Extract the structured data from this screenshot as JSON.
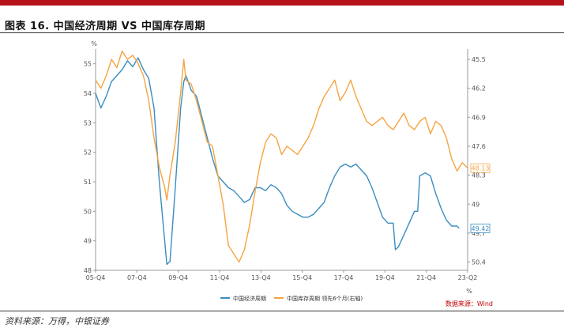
{
  "header": {
    "title": "图表 16. 中国经济周期 VS 中国库存周期"
  },
  "footer": {
    "source": "资料来源：万得，中银证券"
  },
  "chart_data": {
    "type": "line",
    "left_unit": "%",
    "right_unit": "%",
    "credit": "数据来源：Wind",
    "x_ticks": [
      "05-Q4",
      "07-Q4",
      "09-Q4",
      "11-Q4",
      "13-Q4",
      "15-Q4",
      "17-Q4",
      "19-Q4",
      "21-Q4",
      "23-Q2"
    ],
    "x_range": [
      2005.75,
      2023.25
    ],
    "y_left": {
      "range": [
        48,
        55.5
      ],
      "ticks": [
        "48",
        "49",
        "50",
        "51",
        "52",
        "53",
        "54",
        "55"
      ]
    },
    "y_right": {
      "range": [
        45.25,
        50.6
      ],
      "reversed": true,
      "ticks": [
        "45.5",
        "46.2",
        "46.9",
        "47.6",
        "48.3",
        "49",
        "49.7",
        "50.4"
      ]
    },
    "colors": {
      "economic": "#3a8dc0",
      "inventory": "#f5a441"
    },
    "series": [
      {
        "name": "中国经济周期",
        "axis": "left",
        "end_label": "49.42",
        "points": [
          [
            2005.75,
            54.0
          ],
          [
            2006.0,
            53.5
          ],
          [
            2006.25,
            53.9
          ],
          [
            2006.5,
            54.4
          ],
          [
            2006.75,
            54.6
          ],
          [
            2007.0,
            54.8
          ],
          [
            2007.25,
            55.1
          ],
          [
            2007.5,
            54.9
          ],
          [
            2007.75,
            55.2
          ],
          [
            2008.0,
            54.8
          ],
          [
            2008.25,
            54.5
          ],
          [
            2008.5,
            53.5
          ],
          [
            2008.75,
            51.0
          ],
          [
            2009.0,
            49.0
          ],
          [
            2009.1,
            48.2
          ],
          [
            2009.25,
            48.3
          ],
          [
            2009.5,
            50.8
          ],
          [
            2009.75,
            53.5
          ],
          [
            2009.9,
            54.4
          ],
          [
            2010.0,
            54.6
          ],
          [
            2010.25,
            54.1
          ],
          [
            2010.5,
            53.9
          ],
          [
            2010.75,
            53.2
          ],
          [
            2011.0,
            52.5
          ],
          [
            2011.25,
            51.8
          ],
          [
            2011.5,
            51.2
          ],
          [
            2011.75,
            51.0
          ],
          [
            2012.0,
            50.8
          ],
          [
            2012.25,
            50.7
          ],
          [
            2012.5,
            50.5
          ],
          [
            2012.75,
            50.3
          ],
          [
            2013.0,
            50.4
          ],
          [
            2013.25,
            50.8
          ],
          [
            2013.5,
            50.8
          ],
          [
            2013.75,
            50.7
          ],
          [
            2014.0,
            50.9
          ],
          [
            2014.25,
            50.8
          ],
          [
            2014.5,
            50.6
          ],
          [
            2014.75,
            50.2
          ],
          [
            2015.0,
            50.0
          ],
          [
            2015.25,
            49.9
          ],
          [
            2015.5,
            49.8
          ],
          [
            2015.75,
            49.8
          ],
          [
            2016.0,
            49.9
          ],
          [
            2016.25,
            50.1
          ],
          [
            2016.5,
            50.3
          ],
          [
            2016.75,
            50.8
          ],
          [
            2017.0,
            51.2
          ],
          [
            2017.25,
            51.5
          ],
          [
            2017.5,
            51.6
          ],
          [
            2017.75,
            51.5
          ],
          [
            2018.0,
            51.6
          ],
          [
            2018.25,
            51.4
          ],
          [
            2018.5,
            51.2
          ],
          [
            2018.75,
            50.8
          ],
          [
            2019.0,
            50.3
          ],
          [
            2019.25,
            49.8
          ],
          [
            2019.5,
            49.6
          ],
          [
            2019.75,
            49.6
          ],
          [
            2019.85,
            48.7
          ],
          [
            2020.0,
            48.8
          ],
          [
            2020.25,
            49.2
          ],
          [
            2020.5,
            49.6
          ],
          [
            2020.75,
            50.0
          ],
          [
            2020.9,
            50.0
          ],
          [
            2021.0,
            51.2
          ],
          [
            2021.25,
            51.3
          ],
          [
            2021.5,
            51.2
          ],
          [
            2021.75,
            50.6
          ],
          [
            2022.0,
            50.1
          ],
          [
            2022.25,
            49.7
          ],
          [
            2022.5,
            49.5
          ],
          [
            2022.75,
            49.5
          ],
          [
            2022.85,
            49.42
          ]
        ]
      },
      {
        "name": "中国库存周期 领先6个月(右轴)",
        "axis": "right",
        "end_label": "48.13",
        "points": [
          [
            2005.75,
            46.0
          ],
          [
            2006.0,
            46.2
          ],
          [
            2006.25,
            45.9
          ],
          [
            2006.5,
            45.5
          ],
          [
            2006.75,
            45.7
          ],
          [
            2007.0,
            45.3
          ],
          [
            2007.25,
            45.5
          ],
          [
            2007.5,
            45.4
          ],
          [
            2007.75,
            45.6
          ],
          [
            2008.0,
            45.9
          ],
          [
            2008.25,
            46.5
          ],
          [
            2008.5,
            47.4
          ],
          [
            2008.75,
            48.1
          ],
          [
            2009.0,
            48.6
          ],
          [
            2009.1,
            48.9
          ],
          [
            2009.25,
            48.3
          ],
          [
            2009.5,
            47.5
          ],
          [
            2009.75,
            46.3
          ],
          [
            2009.9,
            45.5
          ],
          [
            2010.0,
            46.0
          ],
          [
            2010.25,
            46.1
          ],
          [
            2010.5,
            46.5
          ],
          [
            2010.75,
            47.0
          ],
          [
            2011.0,
            47.5
          ],
          [
            2011.25,
            47.6
          ],
          [
            2011.5,
            48.3
          ],
          [
            2011.75,
            49.0
          ],
          [
            2012.0,
            50.0
          ],
          [
            2012.25,
            50.2
          ],
          [
            2012.5,
            50.4
          ],
          [
            2012.75,
            50.1
          ],
          [
            2013.0,
            49.5
          ],
          [
            2013.25,
            48.7
          ],
          [
            2013.5,
            48.0
          ],
          [
            2013.75,
            47.5
          ],
          [
            2014.0,
            47.3
          ],
          [
            2014.25,
            47.4
          ],
          [
            2014.5,
            47.8
          ],
          [
            2014.75,
            47.6
          ],
          [
            2015.0,
            47.7
          ],
          [
            2015.25,
            47.8
          ],
          [
            2015.5,
            47.6
          ],
          [
            2015.75,
            47.4
          ],
          [
            2016.0,
            47.1
          ],
          [
            2016.25,
            46.7
          ],
          [
            2016.5,
            46.4
          ],
          [
            2016.75,
            46.2
          ],
          [
            2017.0,
            46.0
          ],
          [
            2017.25,
            46.5
          ],
          [
            2017.5,
            46.3
          ],
          [
            2017.75,
            46.0
          ],
          [
            2018.0,
            46.4
          ],
          [
            2018.25,
            46.7
          ],
          [
            2018.5,
            47.0
          ],
          [
            2018.75,
            47.1
          ],
          [
            2019.0,
            47.0
          ],
          [
            2019.25,
            46.9
          ],
          [
            2019.5,
            47.1
          ],
          [
            2019.75,
            47.2
          ],
          [
            2020.0,
            47.0
          ],
          [
            2020.25,
            46.8
          ],
          [
            2020.5,
            47.1
          ],
          [
            2020.75,
            47.2
          ],
          [
            2021.0,
            47.0
          ],
          [
            2021.25,
            46.9
          ],
          [
            2021.5,
            47.3
          ],
          [
            2021.75,
            47.0
          ],
          [
            2022.0,
            47.1
          ],
          [
            2022.25,
            47.4
          ],
          [
            2022.5,
            47.9
          ],
          [
            2022.75,
            48.2
          ],
          [
            2023.0,
            48.0
          ],
          [
            2023.25,
            48.13
          ]
        ]
      }
    ]
  }
}
